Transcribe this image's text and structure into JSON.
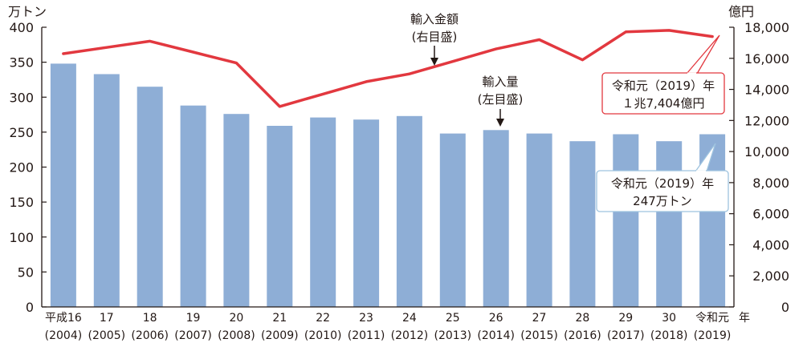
{
  "chart_data": {
    "type": "bar",
    "left_unit": "万トン",
    "right_unit": "億円",
    "x_unit": "年",
    "categories": [
      {
        "era": "平成16",
        "year": "(2004)"
      },
      {
        "era": "17",
        "year": "(2005)"
      },
      {
        "era": "18",
        "year": "(2006)"
      },
      {
        "era": "19",
        "year": "(2007)"
      },
      {
        "era": "20",
        "year": "(2008)"
      },
      {
        "era": "21",
        "year": "(2009)"
      },
      {
        "era": "22",
        "year": "(2010)"
      },
      {
        "era": "23",
        "year": "(2011)"
      },
      {
        "era": "24",
        "year": "(2012)"
      },
      {
        "era": "25",
        "year": "(2013)"
      },
      {
        "era": "26",
        "year": "(2014)"
      },
      {
        "era": "27",
        "year": "(2015)"
      },
      {
        "era": "28",
        "year": "(2016)"
      },
      {
        "era": "29",
        "year": "(2017)"
      },
      {
        "era": "30",
        "year": "(2018)"
      },
      {
        "era": "令和元",
        "year": "(2019)"
      }
    ],
    "left_axis": {
      "min": 0,
      "max": 400,
      "ticks": [
        "0",
        "50",
        "100",
        "150",
        "200",
        "250",
        "300",
        "350",
        "400"
      ]
    },
    "right_axis": {
      "min": 0,
      "max": 18000,
      "ticks": [
        "0",
        "2,000",
        "4,000",
        "6,000",
        "8,000",
        "10,000",
        "12,000",
        "14,000",
        "16,000",
        "18,000"
      ]
    },
    "series": [
      {
        "name": "輸入量",
        "axis": "left",
        "kind": "bar",
        "color": "#8eaed6",
        "values": [
          348,
          333,
          315,
          288,
          276,
          259,
          271,
          268,
          273,
          248,
          253,
          248,
          237,
          247,
          237,
          247
        ]
      },
      {
        "name": "輸入金額",
        "axis": "right",
        "kind": "line",
        "color": "#e2383f",
        "values": [
          16300,
          16700,
          17100,
          16400,
          15700,
          12900,
          13700,
          14500,
          15000,
          15800,
          16600,
          17200,
          15900,
          17700,
          17800,
          17404
        ]
      }
    ],
    "annotations": {
      "value_label_line1": "輸入金額",
      "value_label_line2": "(右目盛)",
      "volume_label_line1": "輸入量",
      "volume_label_line2": "(左目盛)"
    },
    "callouts": {
      "value_line1": "令和元（2019）年",
      "value_line2": "１兆7,404億円",
      "volume_line1": "令和元（2019）年",
      "volume_line2": "247万トン"
    },
    "colors": {
      "bar": "#8eaed6",
      "line": "#e2383f",
      "value_callout_border": "#e2383f",
      "volume_callout_border": "#9ec3df",
      "axis": "#231815"
    }
  }
}
